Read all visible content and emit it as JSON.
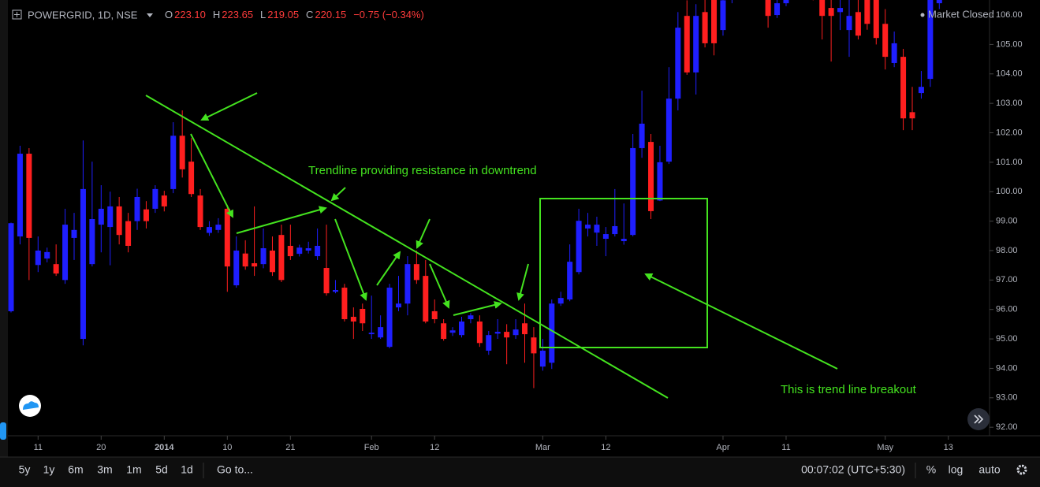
{
  "header": {
    "symbol": "POWERGRID, 1D, NSE",
    "ohlc": [
      {
        "label": "O",
        "value": "223.10"
      },
      {
        "label": "H",
        "value": "223.65"
      },
      {
        "label": "L",
        "value": "219.05"
      },
      {
        "label": "C",
        "value": "220.15"
      }
    ],
    "change": "−0.75 (−0.34%)",
    "status": "Market Closed"
  },
  "chart_data": {
    "type": "candlestick",
    "annotations": [
      "Trendline providing resistance in downtrend",
      "This is trend line breakout"
    ],
    "open": [
      95.94,
      98.48,
      101.29,
      97.51,
      97.73,
      97.54,
      97.0,
      98.43,
      95.0,
      97.54,
      98.88,
      98.8,
      99.5,
      99.0,
      99.0,
      99.4,
      99.42,
      99.87,
      100.09,
      101.9,
      101.02,
      99.87,
      98.6,
      98.7,
      99.42,
      96.82,
      97.9,
      97.57,
      97.54,
      98.0,
      98.53,
      98.16,
      97.89,
      98.0,
      97.81,
      97.41,
      96.6,
      96.74,
      95.75,
      96.02,
      95.16,
      95.05,
      94.73,
      96.07,
      96.2,
      97.54,
      97.14,
      95.94,
      95.53,
      95.21,
      95.13,
      95.67,
      95.59,
      94.6,
      95.18,
      95.24,
      95.13,
      95.53,
      95.05,
      94.06,
      94.19,
      96.2,
      96.34,
      97.27,
      98.75,
      98.61,
      98.4,
      98.56,
      98.32,
      98.53,
      101.48,
      101.69,
      99.7,
      101.02,
      103.16,
      105.97,
      104.05,
      106.1,
      106.6,
      105.49,
      106.6,
      107.2,
      107.0,
      107.3,
      106.51,
      106.0,
      106.4,
      107.0,
      107.2,
      106.9,
      106.51,
      106.24,
      106.1,
      105.49,
      106.1,
      106.51,
      106.51,
      105.7,
      104.37,
      104.58,
      102.7,
      103.35,
      103.83,
      106.4
    ],
    "high": [
      98.95,
      101.56,
      101.48,
      98.48,
      98.1,
      98.21,
      99.42,
      99.28,
      101.74,
      101.02,
      100.22,
      100.0,
      99.82,
      99.28,
      100.1,
      99.68,
      100.22,
      100.03,
      102.36,
      102.76,
      101.82,
      100.09,
      99.0,
      99.1,
      99.55,
      98.48,
      98.35,
      99.5,
      98.75,
      98.48,
      98.88,
      98.88,
      98.2,
      98.3,
      98.75,
      98.88,
      97.0,
      96.87,
      96.07,
      96.2,
      96.47,
      95.8,
      96.87,
      97.14,
      97.81,
      98.0,
      97.68,
      96.34,
      95.67,
      95.4,
      95.75,
      95.88,
      95.8,
      95.27,
      95.67,
      95.5,
      95.67,
      96.2,
      95.4,
      95.0,
      96.34,
      96.6,
      98.21,
      99.42,
      99.28,
      99.15,
      98.8,
      100.09,
      99.6,
      101.96,
      103.43,
      101.96,
      101.56,
      104.23,
      106.1,
      106.5,
      106.37,
      106.6,
      106.9,
      107.0,
      107.5,
      107.6,
      107.6,
      107.5,
      107.0,
      107.0,
      107.3,
      107.5,
      107.4,
      107.2,
      107.0,
      106.7,
      106.6,
      106.6,
      106.6,
      106.9,
      106.9,
      106.2,
      105.44,
      104.85,
      103.56,
      104.1,
      107.0,
      107.0
    ],
    "low": [
      95.9,
      98.21,
      97.0,
      97.27,
      97.6,
      97.14,
      96.87,
      97.68,
      94.78,
      97.46,
      97.94,
      97.5,
      98.21,
      97.94,
      98.7,
      98.75,
      99.28,
      99.33,
      99.95,
      100.48,
      99.82,
      98.7,
      98.5,
      98.6,
      96.6,
      96.74,
      97.35,
      97.14,
      97.4,
      97.14,
      96.93,
      97.68,
      97.8,
      97.9,
      97.68,
      96.47,
      96.55,
      95.59,
      95.0,
      95.27,
      95.0,
      95.0,
      94.68,
      95.94,
      95.8,
      96.87,
      95.53,
      95.53,
      94.94,
      95.1,
      95.05,
      95.53,
      94.73,
      94.46,
      95.0,
      94.14,
      95.0,
      94.19,
      93.33,
      93.92,
      93.98,
      96.12,
      96.28,
      97.19,
      98.48,
      98.16,
      97.81,
      98.48,
      98.2,
      98.48,
      101.15,
      99.07,
      99.68,
      100.94,
      102.76,
      103.97,
      103.3,
      104.9,
      104.63,
      105.3,
      106.4,
      106.8,
      106.9,
      106.7,
      105.57,
      105.9,
      106.3,
      106.8,
      106.6,
      106.5,
      105.17,
      104.42,
      105.49,
      104.58,
      105.17,
      105.5,
      105.0,
      104.15,
      104.23,
      102.09,
      102.09,
      103.16,
      103.56,
      106.2
    ],
    "close": [
      98.93,
      101.29,
      98.43,
      98.0,
      97.95,
      97.22,
      98.88,
      98.7,
      100.09,
      99.07,
      99.42,
      99.5,
      98.53,
      98.16,
      99.82,
      99.0,
      100.09,
      99.5,
      101.9,
      100.76,
      99.92,
      98.8,
      98.8,
      98.88,
      97.46,
      98.0,
      97.46,
      97.46,
      98.08,
      97.27,
      97.0,
      97.81,
      98.1,
      98.08,
      98.16,
      96.55,
      96.66,
      95.67,
      95.59,
      95.53,
      95.21,
      95.4,
      96.74,
      96.2,
      97.54,
      97.0,
      95.59,
      95.67,
      95.0,
      95.29,
      95.59,
      95.8,
      94.86,
      95.13,
      95.24,
      95.05,
      95.32,
      95.16,
      94.51,
      94.6,
      96.2,
      96.39,
      97.62,
      99.01,
      98.88,
      98.88,
      98.56,
      98.83,
      98.4,
      101.48,
      102.31,
      99.34,
      101.0,
      103.16,
      105.57,
      104.05,
      105.97,
      105.04,
      105.04,
      106.5,
      107.2,
      107.0,
      107.3,
      107.1,
      105.97,
      106.4,
      107.0,
      107.2,
      106.9,
      106.6,
      105.97,
      105.97,
      106.24,
      105.97,
      105.3,
      105.7,
      105.22,
      104.58,
      105.04,
      102.49,
      102.49,
      103.56,
      106.51,
      106.6
    ],
    "up_color": "#1f1fff",
    "down_color": "#ff1f1f",
    "ylim": [
      91.71,
      106.51
    ],
    "yticks": [
      {
        "value": 92,
        "label": "92.00"
      },
      {
        "value": 93,
        "label": "93.00"
      },
      {
        "value": 94,
        "label": "94.00"
      },
      {
        "value": 95,
        "label": "95.00"
      },
      {
        "value": 96,
        "label": "96.00"
      },
      {
        "value": 97,
        "label": "97.00"
      },
      {
        "value": 98,
        "label": "98.00"
      },
      {
        "value": 99,
        "label": "99.00"
      },
      {
        "value": 100,
        "label": "100.00"
      },
      {
        "value": 101,
        "label": "101.00"
      },
      {
        "value": 102,
        "label": "102.00"
      },
      {
        "value": 103,
        "label": "103.00"
      },
      {
        "value": 104,
        "label": "104.00"
      },
      {
        "value": 105,
        "label": "105.00"
      },
      {
        "value": 106,
        "label": "106.00"
      }
    ],
    "xticks": [
      {
        "value": 3,
        "label": "11"
      },
      {
        "value": 10,
        "label": "20"
      },
      {
        "value": 17,
        "label": "2014"
      },
      {
        "value": 24,
        "label": "10"
      },
      {
        "value": 31,
        "label": "21"
      },
      {
        "value": 40,
        "label": "Feb"
      },
      {
        "value": 47,
        "label": "12"
      },
      {
        "value": 59,
        "label": "Mar"
      },
      {
        "value": 66,
        "label": "12"
      },
      {
        "value": 79,
        "label": "Apr"
      },
      {
        "value": 86,
        "label": "11"
      },
      {
        "value": 97,
        "label": "May"
      },
      {
        "value": 104,
        "label": "13"
      }
    ]
  },
  "toolbar": {
    "ranges": [
      "5y",
      "1y",
      "6m",
      "3m",
      "1m",
      "5d",
      "1d"
    ],
    "goto": "Go to...",
    "clock": "00:07:02 (UTC+5:30)",
    "options": [
      "%",
      "log",
      "auto"
    ]
  }
}
